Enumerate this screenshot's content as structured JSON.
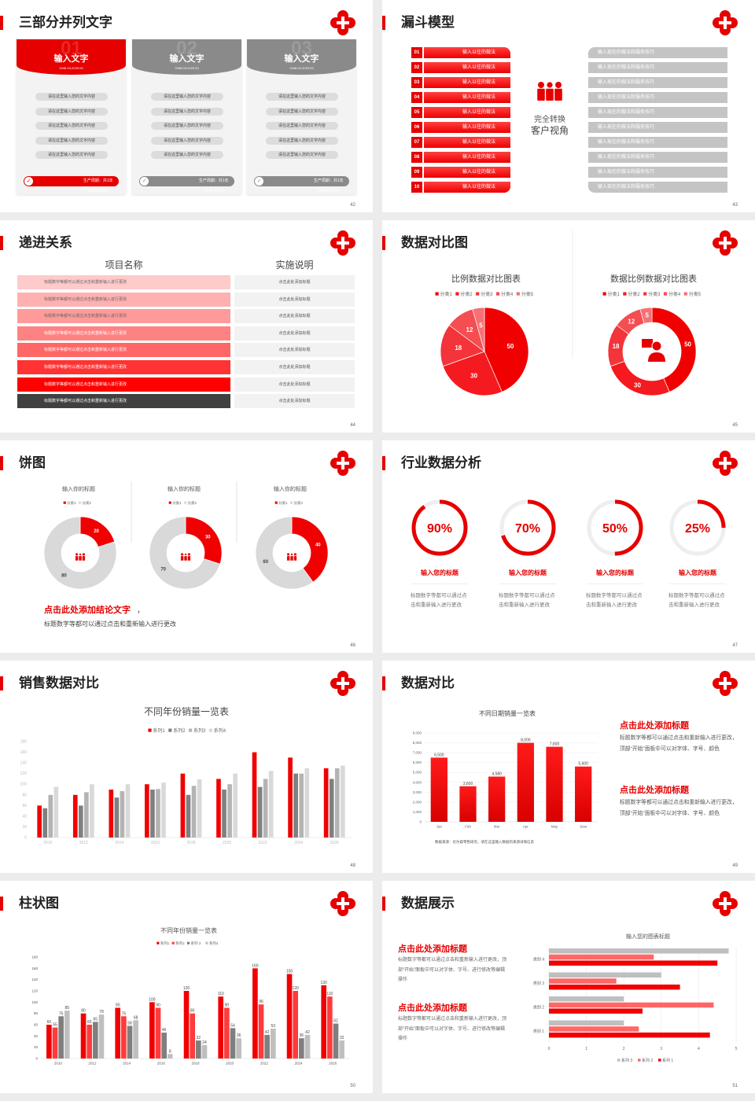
{
  "theme": {
    "accent": "#e60000",
    "gray": "#888888",
    "logo_icon": "red-cross-heart-icon"
  },
  "slides": [
    {
      "page": "42",
      "title": "三部分并列文字",
      "cards": [
        {
          "num": "01",
          "title": "输入文字",
          "date": "2048.03-2029.03",
          "active": true,
          "items": [
            "请在这里输入您的文字内容",
            "请在这里输入您的文字内容",
            "请在这里输入您的文字内容",
            "请在这里输入您的文字内容",
            "请在这里输入您的文字内容"
          ],
          "footer": "生产周期：共1年（2048-2029）"
        },
        {
          "num": "02",
          "title": "输入文字",
          "date": "2048.03-2029.03",
          "active": false,
          "items": [
            "请在这里输入您的文字内容",
            "请在这里输入您的文字内容",
            "请在这里输入您的文字内容",
            "请在这里输入您的文字内容",
            "请在这里输入您的文字内容"
          ],
          "footer": "生产周期：共1年（2048-2029）"
        },
        {
          "num": "03",
          "title": "输入文字",
          "date": "2048.03-2029.03",
          "active": false,
          "items": [
            "请在这里输入您的文字内容",
            "请在这里输入您的文字内容",
            "请在这里输入您的文字内容",
            "请在这里输入您的文字内容",
            "请在这里输入您的文字内容"
          ],
          "footer": "生产周期：共1年（2048-2029）"
        }
      ]
    },
    {
      "page": "43",
      "title": "漏斗模型",
      "left": [
        {
          "num": "01",
          "text": "输入以往的做法"
        },
        {
          "num": "02",
          "text": "输入以往的做法"
        },
        {
          "num": "03",
          "text": "输入以往的做法"
        },
        {
          "num": "04",
          "text": "输入以往的做法"
        },
        {
          "num": "05",
          "text": "输入以往的做法"
        },
        {
          "num": "06",
          "text": "输入以往的做法"
        },
        {
          "num": "07",
          "text": "输入以往的做法"
        },
        {
          "num": "08",
          "text": "输入以往的做法"
        },
        {
          "num": "09",
          "text": "输入以往的做法"
        },
        {
          "num": "10",
          "text": "输入以往的做法"
        }
      ],
      "right": [
        "输入现在的做法和服务技巧",
        "输入现在的做法和服务技巧",
        "输入现在的做法和服务技巧",
        "输入现在的做法和服务技巧",
        "输入现在的做法和服务技巧",
        "输入现在的做法和服务技巧",
        "输入现在的做法和服务技巧",
        "输入现在的做法和服务技巧",
        "输入现在的做法和服务技巧",
        "输入现在的做法和服务技巧"
      ],
      "center": [
        "完全转换",
        "客户视角"
      ],
      "center_icon": "people-group-icon"
    },
    {
      "page": "44",
      "title": "递进关系",
      "headers": [
        "项目名称",
        "实施说明"
      ],
      "rows": [
        {
          "item": "标题数字等都可以通过点击和重新输入进行更改",
          "desc": "点击此处添加标题",
          "color": "#ffcaca"
        },
        {
          "item": "标题数字等都可以通过点击和重新输入进行更改",
          "desc": "点击此处添加标题",
          "color": "#ffb0b0"
        },
        {
          "item": "标题数字等都可以通过点击和重新输入进行更改",
          "desc": "点击此处添加标题",
          "color": "#ff9a9a"
        },
        {
          "item": "标题数字等都可以通过点击和重新输入进行更改",
          "desc": "点击此处添加标题",
          "color": "#ff8282"
        },
        {
          "item": "标题数字等都可以通过点击和重新输入进行更改",
          "desc": "点击此处添加标题",
          "color": "#ff6666"
        },
        {
          "item": "标题数字等都可以通过点击和重新输入进行更改",
          "desc": "点击此处添加标题",
          "color": "#ff3333"
        },
        {
          "item": "标题数字等都可以通过点击和重新输入进行更改",
          "desc": "点击此处添加标题",
          "color": "#ff0000"
        },
        {
          "item": "标题数字等都可以通过点击和重新输入进行更改",
          "desc": "点击此处添加标题",
          "color": "#404040"
        }
      ]
    },
    {
      "page": "45",
      "title": "数据对比图",
      "center_icon": "customer-service-icon"
    },
    {
      "page": "46",
      "title": "饼图",
      "center_icon": "people-group-icon",
      "conclusion_title": "点击此处添加结论文字",
      "conclusion_comma": "，",
      "conclusion_text": "标题数字等都可以通过点击和重新输入进行更改"
    },
    {
      "page": "47",
      "title": "行业数据分析",
      "gauges": [
        {
          "value": 90,
          "label": "90%",
          "title": "输入您的标题",
          "text": "标题数字等都可以通过点击和重新输入进行更改"
        },
        {
          "value": 70,
          "label": "70%",
          "title": "输入您的标题",
          "text": "标题数字等都可以通过点击和重新输入进行更改"
        },
        {
          "value": 50,
          "label": "50%",
          "title": "输入您的标题",
          "text": "标题数字等都可以通过点击和重新输入进行更改"
        },
        {
          "value": 25,
          "label": "25%",
          "title": "输入您的标题",
          "text": "标题数字等都可以通过点击和重新输入进行更改"
        }
      ]
    },
    {
      "page": "48",
      "title": "销售数据对比"
    },
    {
      "page": "49",
      "title": "数据对比",
      "blocks": [
        {
          "title": "点击此处添加标题",
          "text": "标题数字等都可以通过点击和重新输入进行更改，顶部“开始”面板中可以对字体、字号、颜色"
        },
        {
          "title": "点击此处添加标题",
          "text": "标题数字等都可以通过点击和重新输入进行更改，顶部“开始”面板中可以对字体、字号、颜色"
        }
      ],
      "source": "数据来源：尼尔森零售研究，请在这里输入数据的来源详情信息"
    },
    {
      "page": "50",
      "title": "柱状图"
    },
    {
      "page": "51",
      "title": "数据展示",
      "blocks": [
        {
          "title": "点击此处添加标题",
          "text": "标题数字等都可以通过点击和重新输入进行更改，顶部“开始”面板中可以对字体、字号、进行修改等编辑操作"
        },
        {
          "title": "点击此处添加标题",
          "text": "标题数字等都可以通过点击和重新输入进行更改，顶部“开始”面板中可以对字体、字号、进行修改等编辑操作"
        }
      ]
    }
  ],
  "chart_data": [
    {
      "type": "pie",
      "title": "比例数据对比图表",
      "categories": [
        "分类1",
        "分类2",
        "分类3",
        "分类4",
        "分类5"
      ],
      "values": [
        50,
        30,
        18,
        12,
        5
      ],
      "colors": [
        "#f00000",
        "#f41a1f",
        "#f3343a",
        "#f44d52",
        "#f77075"
      ],
      "legend": "top"
    },
    {
      "type": "pie",
      "variant": "donut",
      "title": "数据比例数据对比图表",
      "categories": [
        "分类1",
        "分类2",
        "分类3",
        "分类4",
        "分类5"
      ],
      "values": [
        50,
        30,
        18,
        12,
        5
      ],
      "colors": [
        "#f00000",
        "#f41a1f",
        "#f3343a",
        "#f44d52",
        "#f77075"
      ],
      "legend": "top"
    },
    {
      "type": "pie",
      "variant": "donut",
      "title": "输入你的标题",
      "categories": [
        "分类1",
        "分类2"
      ],
      "values": [
        20,
        80
      ],
      "colors": [
        "#f00000",
        "#d9d9d9"
      ],
      "legend": "top"
    },
    {
      "type": "pie",
      "variant": "donut",
      "title": "输入你的标题",
      "categories": [
        "分类1",
        "分类2"
      ],
      "values": [
        30,
        70
      ],
      "colors": [
        "#f00000",
        "#d9d9d9"
      ],
      "legend": "top"
    },
    {
      "type": "pie",
      "variant": "donut",
      "title": "输入你的标题",
      "categories": [
        "分类1",
        "分类2"
      ],
      "values": [
        40,
        60
      ],
      "colors": [
        "#f00000",
        "#d9d9d9"
      ],
      "legend": "top"
    },
    {
      "type": "bar",
      "title": "不同年份销量一览表",
      "categories": [
        "2010",
        "2012",
        "2014",
        "2016",
        "2018",
        "2020",
        "2022",
        "2024",
        "2026"
      ],
      "series": [
        {
          "name": "系列1",
          "color": "#f00000",
          "values": [
            60,
            80,
            90,
            100,
            120,
            110,
            160,
            150,
            130
          ]
        },
        {
          "name": "系列2",
          "color": "#808080",
          "values": [
            55,
            60,
            75,
            90,
            80,
            90,
            95,
            120,
            110
          ]
        },
        {
          "name": "系列3",
          "color": "#b4b4b4",
          "values": [
            80,
            85,
            87,
            91,
            97,
            100,
            110,
            120,
            130
          ]
        },
        {
          "name": "系列4",
          "color": "#d9d9d9",
          "values": [
            95,
            100,
            100,
            103,
            109,
            120,
            125,
            130,
            135
          ]
        }
      ],
      "ylim": [
        0,
        180
      ],
      "ystep": 20,
      "grid": false,
      "legend": "top"
    },
    {
      "type": "bar",
      "title": "不同日期销量一览表",
      "categories": [
        "Jan",
        "Feb",
        "Mar",
        "Apr",
        "May",
        "June"
      ],
      "series": [
        {
          "color": "#f00000",
          "values": [
            6500,
            3600,
            4580,
            8000,
            7600,
            5600
          ]
        }
      ],
      "data_labels": [
        "6,500",
        "3,600",
        "4,580",
        "8,000",
        "7,600",
        "5,600"
      ],
      "ylim": [
        0,
        9000
      ],
      "ystep": 1000,
      "grid": true,
      "legend": "none"
    },
    {
      "type": "bar",
      "title": "不同年份销量一览表",
      "categories": [
        "2010",
        "2012",
        "2014",
        "2016",
        "2018",
        "2020",
        "2022",
        "2024",
        "2026"
      ],
      "series": [
        {
          "name": "系列1",
          "color": "#f00000",
          "values": [
            60,
            80,
            90,
            100,
            120,
            110,
            160,
            150,
            130
          ]
        },
        {
          "name": "系列2",
          "color": "#ff3b3b",
          "values": [
            55,
            60,
            75,
            90,
            80,
            90,
            96,
            120,
            110
          ]
        },
        {
          "name": "系列 3",
          "color": "#7f7f7f",
          "values": [
            75,
            65,
            58,
            46,
            32,
            54,
            42,
            36,
            62
          ]
        },
        {
          "name": "系列4",
          "color": "#bfbfbf",
          "values": [
            85,
            78,
            68,
            8,
            24,
            36,
            53,
            42,
            32
          ]
        }
      ],
      "ylim": [
        0,
        180
      ],
      "ystep": 20,
      "grid": false,
      "legend": "top",
      "data_labels": true
    },
    {
      "type": "bar",
      "orientation": "horizontal",
      "title": "输入您的图表标题",
      "categories": [
        "类别 1",
        "类别 2",
        "类别 3",
        "类别 4"
      ],
      "series": [
        {
          "name": "系列 3",
          "color": "#bfbfbf",
          "values": [
            2,
            2,
            3,
            4.8
          ]
        },
        {
          "name": "系列 2",
          "color": "#ff6666",
          "values": [
            2.4,
            4.4,
            1.8,
            2.8
          ]
        },
        {
          "name": "系列 1",
          "color": "#f00000",
          "values": [
            4.3,
            2.5,
            3.5,
            4.5
          ]
        }
      ],
      "xlim": [
        0,
        5
      ],
      "xstep": 1,
      "grid": true,
      "legend": "bottom"
    }
  ]
}
